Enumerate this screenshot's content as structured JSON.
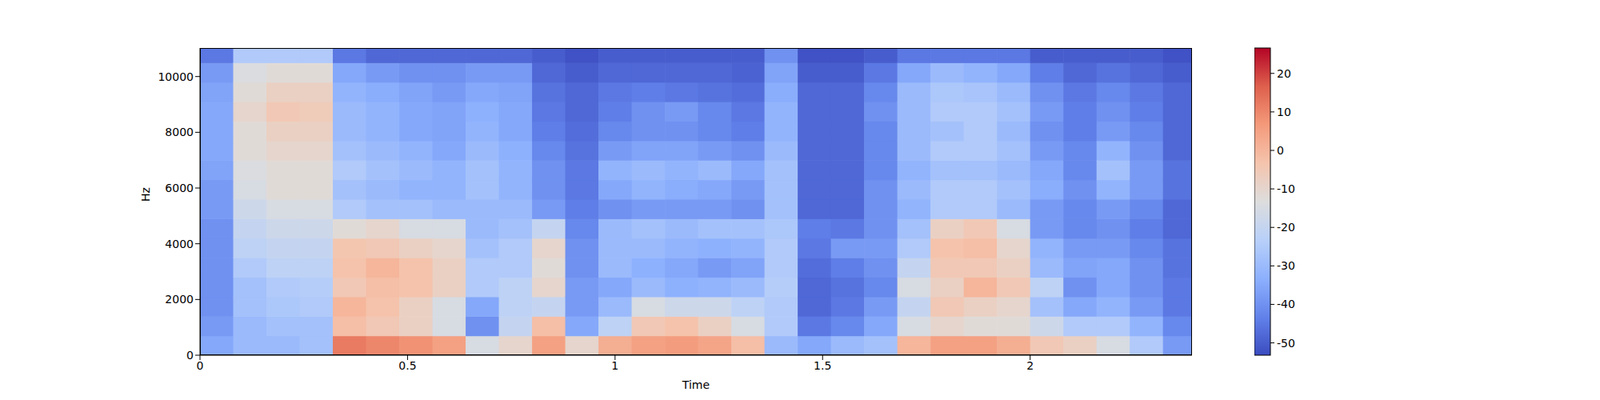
{
  "chart_data": {
    "type": "heatmap",
    "x_label": "Time",
    "y_label": "Hz",
    "xlim": [
      0,
      2.39
    ],
    "xticks": [
      0,
      0.5,
      1,
      1.5,
      2
    ],
    "ylim": [
      0,
      11025
    ],
    "yticks": [
      0,
      2000,
      4000,
      6000,
      8000,
      10000
    ],
    "xbins": [
      0,
      0.08,
      0.16,
      0.24,
      0.32,
      0.4,
      0.48,
      0.56,
      0.64,
      0.72,
      0.8,
      0.88,
      0.96,
      1.04,
      1.12,
      1.2,
      1.28,
      1.36,
      1.44,
      1.52,
      1.6,
      1.68,
      1.76,
      1.84,
      1.92,
      2.0,
      2.08,
      2.16,
      2.24,
      2.32,
      2.39
    ],
    "ybins": [
      0,
      700,
      1400,
      2100,
      2800,
      3500,
      4200,
      4900,
      5600,
      6300,
      7000,
      7700,
      8400,
      9100,
      9800,
      10500,
      11025
    ],
    "cells": [
      [
        -35,
        -38,
        -40,
        -40,
        -40,
        -40,
        -40,
        -38,
        -38,
        -36,
        -35,
        -35,
        -35,
        -36,
        -38,
        -45
      ],
      [
        -30,
        -30,
        -28,
        -28,
        -25,
        -22,
        -20,
        -18,
        -15,
        -14,
        -12,
        -12,
        -10,
        -12,
        -14,
        -25
      ],
      [
        -30,
        -28,
        -26,
        -25,
        -22,
        -20,
        -18,
        -15,
        -12,
        -12,
        -10,
        -8,
        -5,
        -8,
        -12,
        -25
      ],
      [
        -28,
        -28,
        -25,
        -24,
        -22,
        -20,
        -18,
        -15,
        -12,
        -12,
        -10,
        -8,
        -6,
        -8,
        -12,
        -25
      ],
      [
        12,
        -2,
        0,
        -5,
        -3,
        -4,
        -12,
        -25,
        -28,
        -25,
        -28,
        -30,
        -30,
        -32,
        -35,
        -45
      ],
      [
        10,
        -5,
        -3,
        -2,
        0,
        -5,
        -10,
        -28,
        -30,
        -28,
        -30,
        -32,
        -32,
        -34,
        -38,
        -48
      ],
      [
        8,
        -8,
        -8,
        -3,
        -3,
        -8,
        -15,
        -28,
        -32,
        -30,
        -32,
        -35,
        -35,
        -36,
        -40,
        -48
      ],
      [
        5,
        -15,
        -15,
        -8,
        -8,
        -10,
        -15,
        -30,
        -32,
        -32,
        -35,
        -36,
        -36,
        -38,
        -40,
        -48
      ],
      [
        -15,
        -40,
        -35,
        -25,
        -25,
        -28,
        -30,
        -30,
        -28,
        -28,
        -30,
        -32,
        -33,
        -35,
        -38,
        -48
      ],
      [
        -10,
        -20,
        -22,
        -22,
        -25,
        -25,
        -28,
        -30,
        -32,
        -32,
        -33,
        -35,
        -35,
        -36,
        -38,
        -48
      ],
      [
        5,
        -2,
        -20,
        -10,
        -12,
        -10,
        -20,
        -38,
        -40,
        -40,
        -42,
        -44,
        -45,
        -46,
        -48,
        -50
      ],
      [
        -10,
        -35,
        -38,
        -38,
        -40,
        -40,
        -42,
        -44,
        -45,
        -45,
        -46,
        -47,
        -48,
        -48,
        -50,
        -52
      ],
      [
        2,
        -22,
        -30,
        -35,
        -30,
        -30,
        -30,
        -40,
        -35,
        -32,
        -38,
        -42,
        -44,
        -45,
        -48,
        -50
      ],
      [
        5,
        -5,
        -15,
        -30,
        -33,
        -30,
        -28,
        -38,
        -32,
        -30,
        -36,
        -40,
        -40,
        -44,
        -48,
        -50
      ],
      [
        6,
        -3,
        -18,
        -33,
        -35,
        -32,
        -30,
        -38,
        -34,
        -32,
        -36,
        -40,
        -38,
        -45,
        -48,
        -50
      ],
      [
        4,
        -8,
        -18,
        -32,
        -38,
        -33,
        -28,
        -38,
        -35,
        -30,
        -38,
        -42,
        -42,
        -46,
        -48,
        -50
      ],
      [
        -2,
        -15,
        -22,
        -30,
        -36,
        -32,
        -28,
        -40,
        -38,
        -35,
        -40,
        -44,
        -45,
        -47,
        -49,
        -50
      ],
      [
        -30,
        -25,
        -25,
        -24,
        -25,
        -25,
        -26,
        -28,
        -28,
        -28,
        -30,
        -32,
        -32,
        -34,
        -36,
        -40
      ],
      [
        -35,
        -45,
        -48,
        -48,
        -47,
        -45,
        -44,
        -48,
        -48,
        -48,
        -48,
        -48,
        -48,
        -48,
        -50,
        -52
      ],
      [
        -30,
        -42,
        -45,
        -46,
        -44,
        -38,
        -45,
        -48,
        -48,
        -48,
        -48,
        -48,
        -48,
        -48,
        -50,
        -52
      ],
      [
        -28,
        -35,
        -38,
        -42,
        -40,
        -38,
        -40,
        -40,
        -40,
        -42,
        -42,
        -42,
        -40,
        -42,
        -45,
        -50
      ],
      [
        0,
        -15,
        -20,
        -15,
        -20,
        -25,
        -28,
        -32,
        -30,
        -32,
        -30,
        -30,
        -30,
        -30,
        -35,
        -45
      ],
      [
        5,
        -10,
        -5,
        -8,
        -5,
        -3,
        -8,
        -25,
        -25,
        -28,
        -25,
        -28,
        -25,
        -26,
        -30,
        -45
      ],
      [
        5,
        -12,
        -8,
        0,
        -5,
        -2,
        -5,
        -25,
        -25,
        -28,
        -25,
        -25,
        -25,
        -27,
        -32,
        -45
      ],
      [
        2,
        -12,
        -10,
        -5,
        -8,
        -10,
        -15,
        -30,
        -28,
        -30,
        -28,
        -30,
        -28,
        -30,
        -35,
        -45
      ],
      [
        -5,
        -18,
        -28,
        -22,
        -30,
        -32,
        -38,
        -38,
        -34,
        -35,
        -38,
        -40,
        -38,
        -40,
        -44,
        -50
      ],
      [
        -8,
        -25,
        -35,
        -40,
        -36,
        -38,
        -42,
        -42,
        -40,
        -42,
        -42,
        -44,
        -44,
        -45,
        -48,
        -50
      ],
      [
        -15,
        -25,
        -32,
        -35,
        -35,
        -38,
        -40,
        -38,
        -32,
        -28,
        -32,
        -38,
        -40,
        -42,
        -46,
        -50
      ],
      [
        -25,
        -32,
        -38,
        -40,
        -40,
        -42,
        -44,
        -42,
        -38,
        -38,
        -40,
        -42,
        -44,
        -45,
        -48,
        -50
      ],
      [
        -38,
        -42,
        -45,
        -45,
        -46,
        -46,
        -48,
        -48,
        -46,
        -46,
        -48,
        -48,
        -48,
        -48,
        -50,
        -52
      ]
    ],
    "color_range": [
      -53.2,
      26.6
    ],
    "color_ticks": [
      -50,
      -40,
      -30,
      -20,
      -10,
      0,
      10,
      20
    ]
  }
}
